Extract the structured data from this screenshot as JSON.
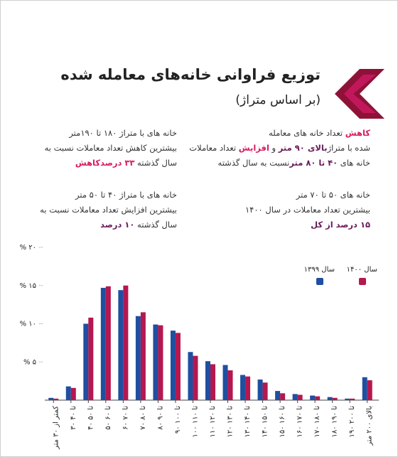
{
  "header": {
    "title": "توزیع فراوانی خانه‌های معامله شده",
    "subtitle": "(بر اساس متراژ)"
  },
  "notes": [
    {
      "lines": [
        [
          {
            "text": "کاهش",
            "color": "#d81b60"
          },
          " تعداد خانه های معامله"
        ],
        [
          "شده با متراژ",
          {
            "text": "بالای ۹۰ متر",
            "color": "#6a1b5a"
          },
          " و ",
          {
            "text": "افزایش",
            "color": "#d81b60"
          },
          " تعداد معاملات"
        ],
        [
          "خانه های ",
          {
            "text": "۴۰ تا ۸۰ متر",
            "color": "#6a1b5a"
          },
          "نسبت به سال گذشته"
        ]
      ]
    },
    {
      "lines": [
        [
          "خانه های با متراژ ۱۸۰ تا ۱۹۰متر"
        ],
        [
          "بیشترین کاهش تعداد معاملات نسبت به"
        ],
        [
          "سال گذشته ",
          {
            "text": "۳۳ درصدکاهش",
            "color": "#d81b60"
          }
        ]
      ]
    },
    {
      "lines": [
        [
          "خانه های ۵۰ تا ۷۰ متر"
        ],
        [
          "بیشترین تعداد معاملات در سال ۱۴۰۰"
        ],
        [
          {
            "text": "۱۵ درصد از کل",
            "color": "#6a1b5a"
          }
        ]
      ]
    },
    {
      "lines": [
        [
          "خانه های با متراژ ۴۰ تا ۵۰ متر"
        ],
        [
          "بیشترین افزایش تعداد معاملات نسبت به"
        ],
        [
          "سال گذشته ",
          {
            "text": "۱۰ درصد",
            "color": "#6a1b5a"
          }
        ]
      ]
    }
  ],
  "chart_data": {
    "type": "bar",
    "categories": [
      "کمتر از ۳۰ متر",
      "۳۰ تا ۴۰",
      "۴۰ تا ۵۰",
      "۵۰ تا ۶۰",
      "۶۰ تا ۷۰",
      "۷۰ تا ۸۰",
      "۸۰ تا ۹۰",
      "۹۰ تا ۱۰۰",
      "۱۰۰ تا ۱۱۰",
      "۱۱۰ تا ۱۲۰",
      "۱۲۰ تا ۱۳۰",
      "۱۳۰ تا ۱۴۰",
      "۱۴۰ تا ۱۵۰",
      "۱۵۰ تا ۱۶۰",
      "۱۶۰ تا ۱۷۰",
      "۱۷۰ تا ۱۸۰",
      "۱۸۰ تا ۱۹۰",
      "۱۹۰ تا ۲۰۰",
      "بالای ۲۰۰ متر"
    ],
    "series": [
      {
        "name": "سال ۱۳۹۹",
        "color": "#1f4fa0",
        "values": [
          0.3,
          1.8,
          10.0,
          14.7,
          14.4,
          11.0,
          9.9,
          9.1,
          6.3,
          5.1,
          4.6,
          3.3,
          2.7,
          1.2,
          0.8,
          0.6,
          0.4,
          0.2,
          3.0
        ]
      },
      {
        "name": "سال ۱۴۰۰",
        "color": "#b5174f",
        "values": [
          0.2,
          1.6,
          10.8,
          14.9,
          15.0,
          11.5,
          9.8,
          8.8,
          5.8,
          4.7,
          3.9,
          3.1,
          2.3,
          0.9,
          0.7,
          0.5,
          0.3,
          0.2,
          2.6
        ]
      }
    ],
    "ylim": [
      0,
      20
    ],
    "yticks": [
      {
        "value": 5,
        "label": "% ۵"
      },
      {
        "value": 10,
        "label": "% ۱۰"
      },
      {
        "value": 15,
        "label": "% ۱۵"
      },
      {
        "value": 20,
        "label": "% ۲۰"
      }
    ],
    "grid": false
  }
}
